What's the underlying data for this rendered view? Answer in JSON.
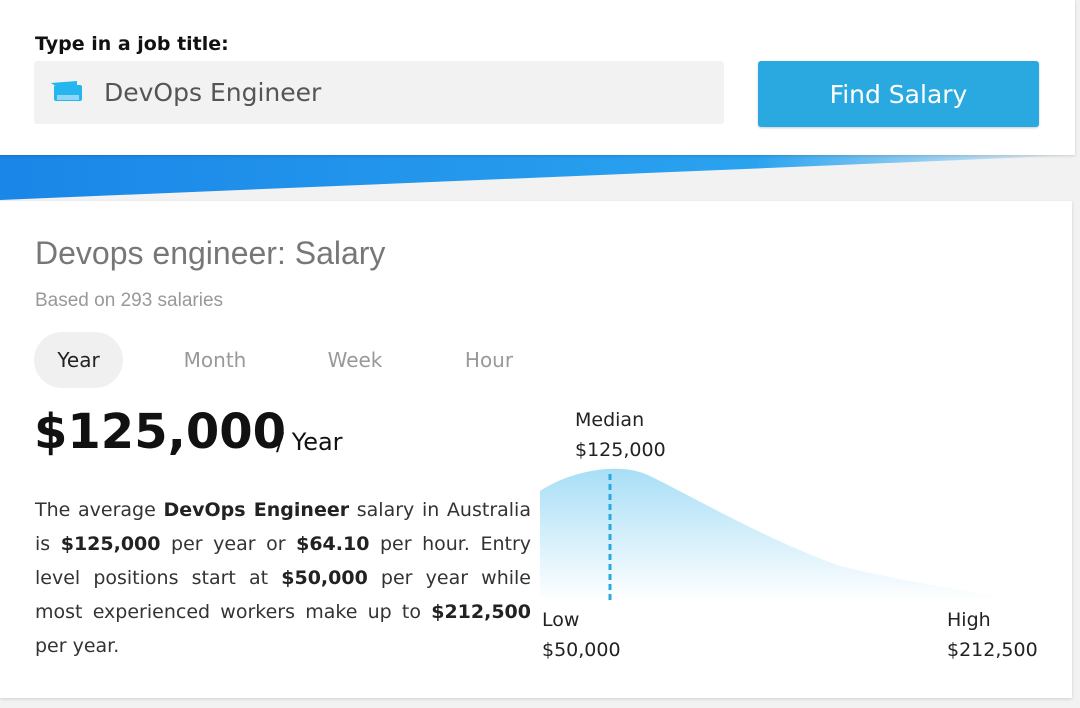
{
  "search": {
    "label": "Type in a job title:",
    "value": "DevOps Engineer",
    "button_label": "Find Salary"
  },
  "result": {
    "title": "Devops engineer: Salary",
    "subtitle": "Based on 293 salaries",
    "tabs": [
      {
        "label": "Year",
        "active": true
      },
      {
        "label": "Month",
        "active": false
      },
      {
        "label": "Week",
        "active": false
      },
      {
        "label": "Hour",
        "active": false
      }
    ],
    "amount": "$125,000",
    "period": "/ Year",
    "description": {
      "t1": "The average ",
      "job": "DevOps Engineer",
      "t2": " salary in Australia is ",
      "annual": "$125,000",
      "t3": " per year or ",
      "hourly": "$64.10",
      "t4": " per hour. Entry level positions start at ",
      "entry": "$50,000",
      "t5": " per year while most experienced workers make up to ",
      "top": "$212,500",
      "t6": " per year."
    }
  },
  "distribution": {
    "median_label": "Median",
    "median_value": "$125,000",
    "low_label": "Low",
    "low_value": "$50,000",
    "high_label": "High",
    "high_value": "$212,500",
    "median": 125000,
    "low": 50000,
    "high": 212500
  },
  "colors": {
    "accent": "#2aa9e0",
    "banner": "#1e8fe6",
    "curve_top": "#a8def6",
    "median_line": "#2aa9e0"
  }
}
